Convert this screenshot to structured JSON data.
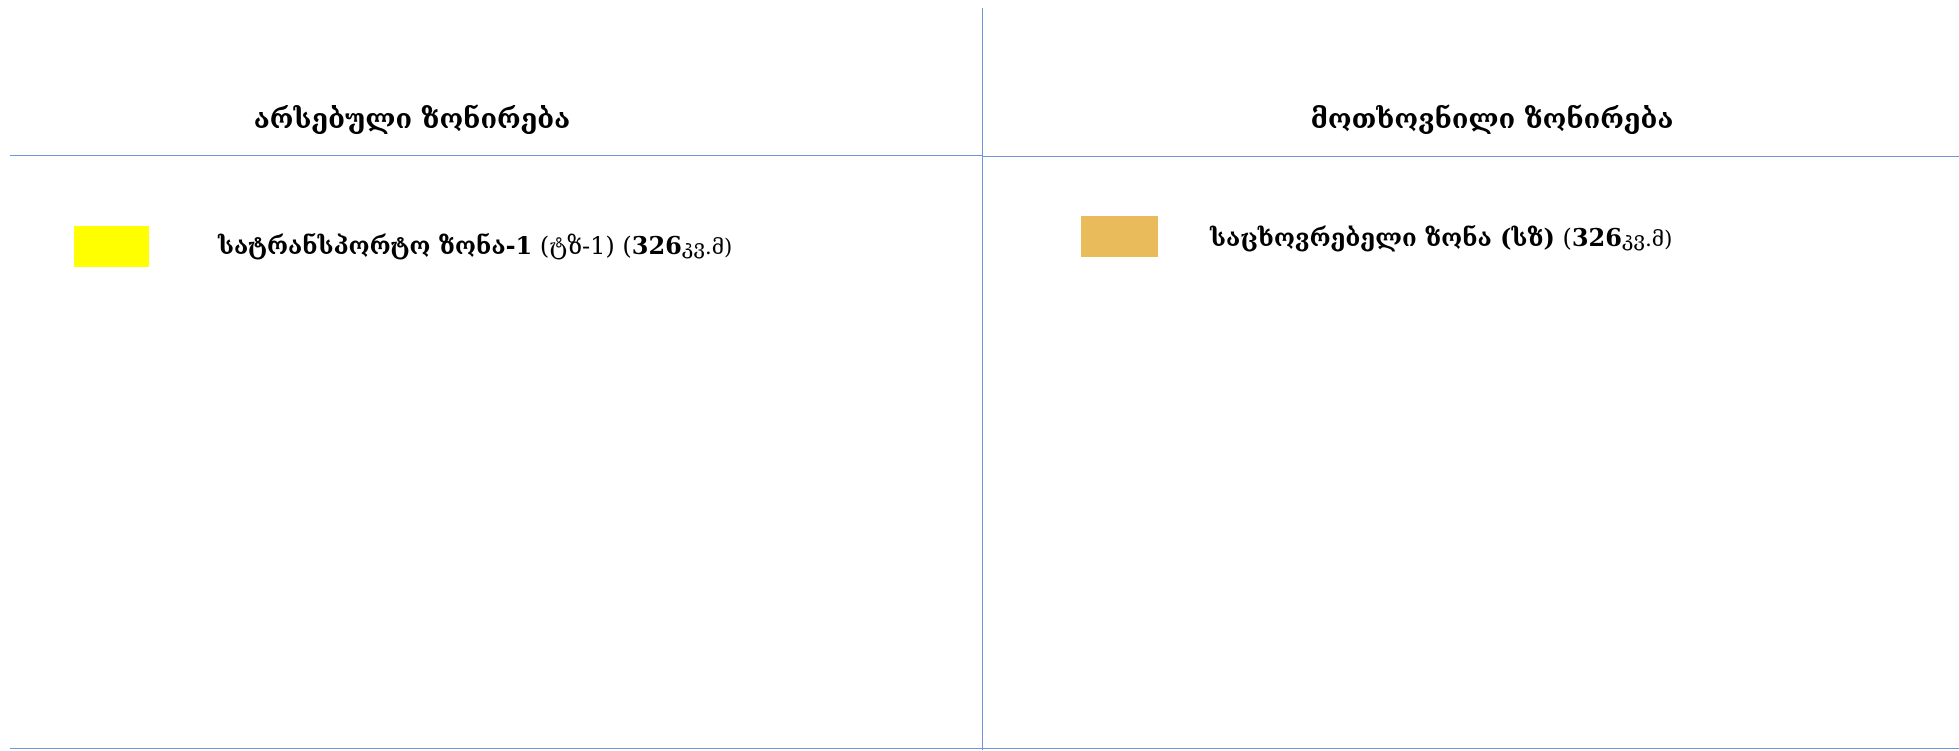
{
  "headers": {
    "existing": "არსებული ზონირება",
    "requested": "მოთხოვნილი ზონირება"
  },
  "existing_zone": {
    "color": "#FFFF00",
    "name": "სატრანსპორტო ზონა-1",
    "code": " (ტზ-1) (",
    "area": "326",
    "unit": "კვ.მ)"
  },
  "requested_zone": {
    "color": "#E9BB5A",
    "name": "საცხოვრებელი ზონა (სზ)",
    "code": " (",
    "area": "326",
    "unit": "კვ.მ)"
  }
}
